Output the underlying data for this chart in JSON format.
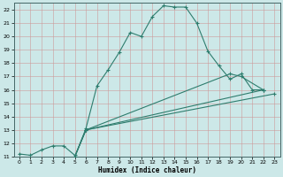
{
  "xlabel": "Humidex (Indice chaleur)",
  "bg_color": "#cce8e8",
  "line_color": "#2e7d6e",
  "grid_color": "#aacccc",
  "grid_color2": "#cc9999",
  "xlim": [
    -0.5,
    23.5
  ],
  "ylim": [
    11,
    22.5
  ],
  "xticks": [
    0,
    1,
    2,
    3,
    4,
    5,
    6,
    7,
    8,
    9,
    10,
    11,
    12,
    13,
    14,
    15,
    16,
    17,
    18,
    19,
    20,
    21,
    22,
    23
  ],
  "yticks": [
    11,
    12,
    13,
    14,
    15,
    16,
    17,
    18,
    19,
    20,
    21,
    22
  ],
  "curve1_x": [
    0,
    1,
    2,
    3,
    4,
    5,
    5,
    6,
    7,
    8,
    9,
    10,
    11,
    12,
    13,
    14,
    15,
    16,
    17,
    18,
    19,
    20,
    21,
    22
  ],
  "curve1_y": [
    11.2,
    11.1,
    11.5,
    11.8,
    11.8,
    11.1,
    11.0,
    13.1,
    16.3,
    17.5,
    18.8,
    20.3,
    20.0,
    21.5,
    22.3,
    22.2,
    22.2,
    21.0,
    18.9,
    17.8,
    16.8,
    17.2,
    16.0,
    16.0
  ],
  "curve2_x": [
    5,
    6,
    19,
    20,
    22
  ],
  "curve2_y": [
    11.0,
    13.0,
    17.2,
    17.0,
    16.0
  ],
  "curve3_x": [
    5,
    6,
    22
  ],
  "curve3_y": [
    11.0,
    13.0,
    16.0
  ],
  "curve4_x": [
    5,
    6,
    23
  ],
  "curve4_y": [
    11.0,
    13.0,
    15.7
  ],
  "figsize": [
    3.2,
    2.0
  ],
  "dpi": 100
}
